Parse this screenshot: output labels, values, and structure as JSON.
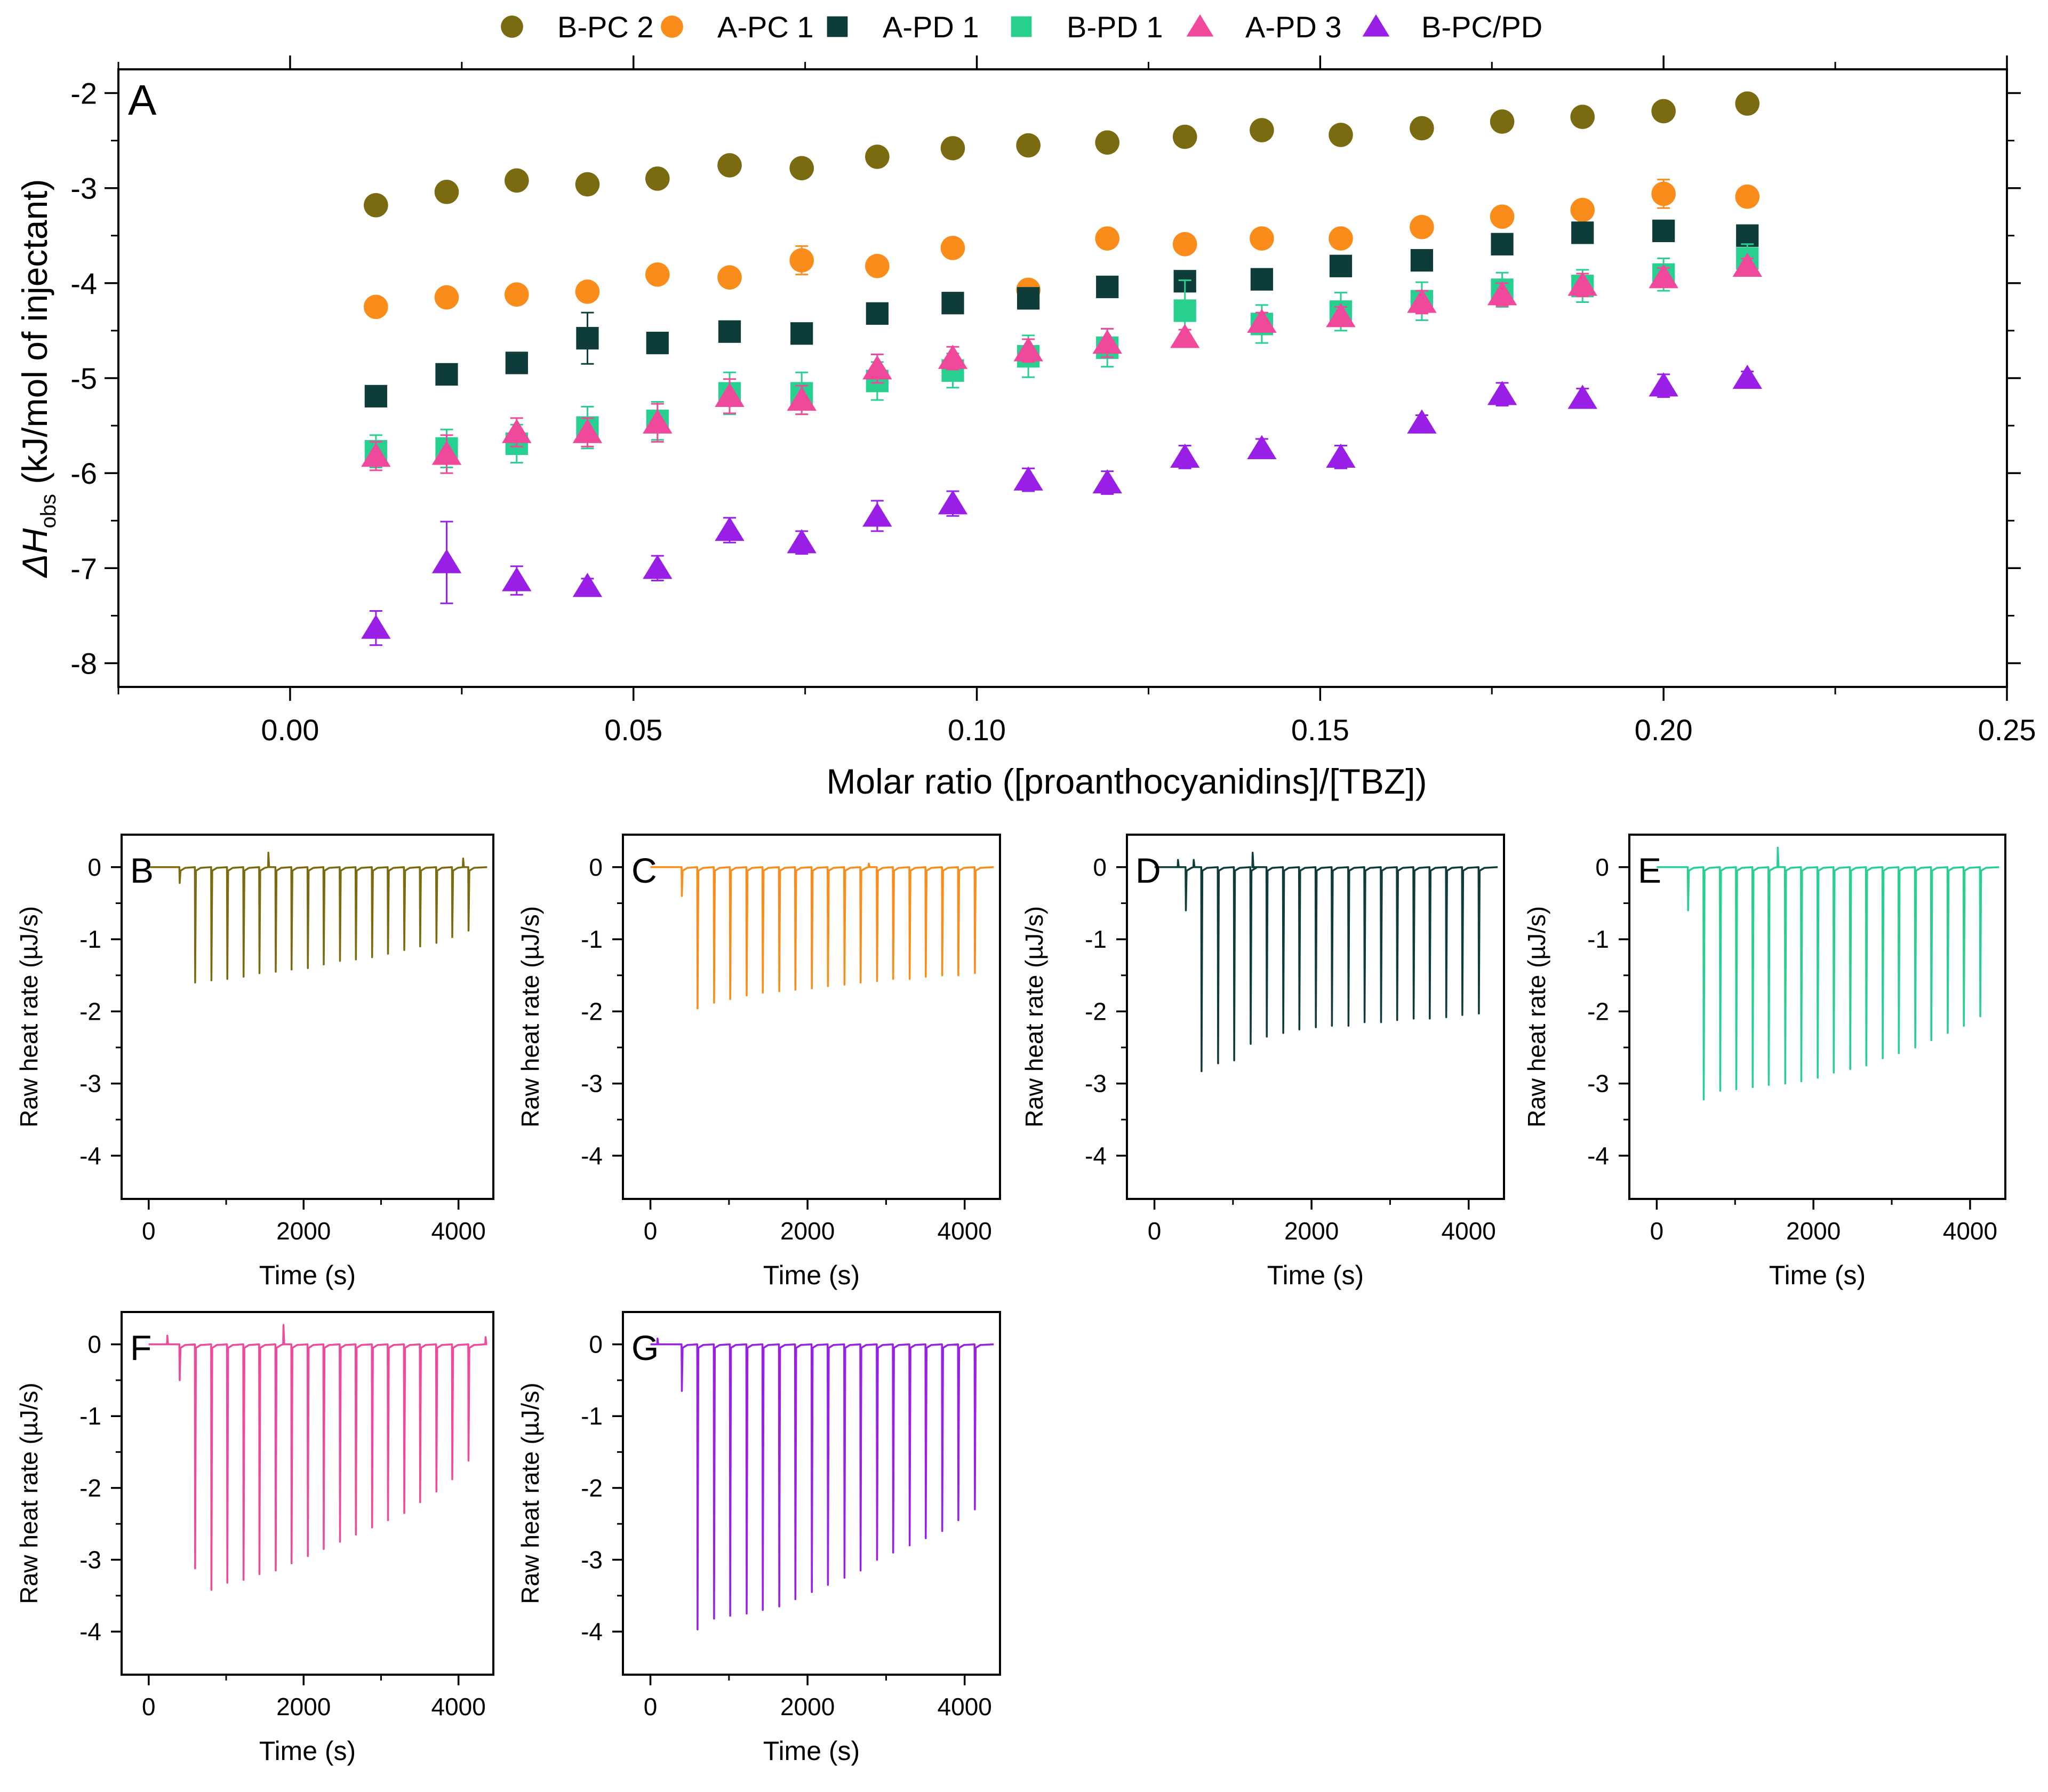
{
  "chart_data": [
    {
      "type": "scatter",
      "panel_label": "A",
      "title": "",
      "xlabel": "Molar ratio ([proanthocyanidins]/[TBZ])",
      "ylabel": "ΔH",
      "ylabel_sub": "obs",
      "ylabel_unit": "(kJ/mol of injectant)",
      "xlim": [
        -0.025,
        0.25
      ],
      "ylim": [
        -8.25,
        -1.75
      ],
      "x_ticks": [
        "0.00",
        "0.05",
        "0.10",
        "0.15",
        "0.20",
        "0.25"
      ],
      "y_ticks": [
        "-2",
        "-3",
        "-4",
        "-5",
        "-6",
        "-7",
        "-8"
      ],
      "legend_position": "top (outside, single row)",
      "x": [
        0.0125,
        0.0228,
        0.033,
        0.0433,
        0.0535,
        0.064,
        0.0745,
        0.0855,
        0.0965,
        0.1075,
        0.119,
        0.1303,
        0.1415,
        0.153,
        0.1648,
        0.1765,
        0.1882,
        0.2,
        0.2122
      ],
      "series": [
        {
          "name": "B-PC 2",
          "marker": "circle",
          "color": "#7a6a10",
          "values": [
            -3.18,
            -3.04,
            -2.92,
            -2.96,
            -2.9,
            -2.76,
            -2.79,
            -2.67,
            -2.58,
            -2.55,
            -2.52,
            -2.46,
            -2.39,
            -2.44,
            -2.37,
            -2.3,
            -2.25,
            -2.19,
            -2.11
          ],
          "errors": [
            0.03,
            0.03,
            0.03,
            0.03,
            0.03,
            0.03,
            0.03,
            0.03,
            0.03,
            0.03,
            0.04,
            0.04,
            0.04,
            0.04,
            0.05,
            0.1,
            0.04,
            0.05,
            0.04
          ]
        },
        {
          "name": "A-PC 1",
          "marker": "circle",
          "color": "#f98c1a",
          "values": [
            -4.25,
            -4.15,
            -4.12,
            -4.09,
            -3.91,
            -3.94,
            -3.76,
            -3.82,
            -3.63,
            -4.07,
            -3.53,
            -3.59,
            -3.53,
            -3.53,
            -3.41,
            -3.3,
            -3.23,
            -3.06,
            -3.09
          ],
          "errors": [
            0.08,
            0.04,
            0.04,
            0.04,
            0.04,
            0.06,
            0.15,
            0.05,
            0.05,
            0.06,
            0.07,
            0.1,
            0.05,
            0.05,
            0.05,
            0.06,
            0.05,
            0.15,
            0.05
          ]
        },
        {
          "name": "A-PD 1",
          "marker": "square",
          "color": "#0d3c3a",
          "values": [
            -5.19,
            -4.96,
            -4.84,
            -4.58,
            -4.63,
            -4.51,
            -4.53,
            -4.32,
            -4.21,
            -4.16,
            -4.04,
            -3.98,
            -3.96,
            -3.82,
            -3.76,
            -3.59,
            -3.47,
            -3.45,
            -3.5
          ],
          "errors": [
            0.04,
            0.04,
            0.08,
            0.27,
            0.08,
            0.05,
            0.08,
            0.05,
            0.04,
            0.04,
            0.04,
            0.05,
            0.05,
            0.05,
            0.05,
            0.05,
            0.05,
            0.05,
            0.08
          ]
        },
        {
          "name": "B-PD 1",
          "marker": "square",
          "color": "#27d08e",
          "values": [
            -5.77,
            -5.74,
            -5.69,
            -5.52,
            -5.45,
            -5.16,
            -5.16,
            -5.03,
            -4.92,
            -4.77,
            -4.68,
            -4.29,
            -4.43,
            -4.3,
            -4.19,
            -4.07,
            -4.03,
            -3.91,
            -3.74
          ],
          "errors": [
            0.17,
            0.2,
            0.2,
            0.22,
            0.2,
            0.22,
            0.22,
            0.2,
            0.18,
            0.22,
            0.2,
            0.32,
            0.2,
            0.2,
            0.2,
            0.18,
            0.17,
            0.17,
            0.15
          ]
        },
        {
          "name": "A-PD 3",
          "marker": "triangle",
          "color": "#f0489a",
          "values": [
            -5.82,
            -5.8,
            -5.57,
            -5.57,
            -5.47,
            -5.19,
            -5.23,
            -4.9,
            -4.79,
            -4.71,
            -4.63,
            -4.57,
            -4.41,
            -4.35,
            -4.2,
            -4.12,
            -4.02,
            -3.94,
            -3.82
          ],
          "errors": [
            0.15,
            0.2,
            0.15,
            0.15,
            0.2,
            0.18,
            0.15,
            0.15,
            0.12,
            0.12,
            0.15,
            0.08,
            0.1,
            0.1,
            0.12,
            0.12,
            0.12,
            0.1,
            0.08
          ]
        },
        {
          "name": "B-PC/PD",
          "marker": "triangle",
          "color": "#9a1fe6",
          "values": [
            -7.63,
            -6.94,
            -7.13,
            -7.19,
            -7.0,
            -6.6,
            -6.73,
            -6.45,
            -6.32,
            -6.07,
            -6.1,
            -5.83,
            -5.74,
            -5.83,
            -5.47,
            -5.17,
            -5.21,
            -5.08,
            -5.0
          ],
          "errors": [
            0.18,
            0.43,
            0.15,
            0.08,
            0.13,
            0.13,
            0.12,
            0.16,
            0.13,
            0.12,
            0.12,
            0.12,
            0.1,
            0.12,
            0.08,
            0.12,
            0.1,
            0.12,
            0.07
          ]
        }
      ]
    },
    {
      "type": "line",
      "panel_label": "B",
      "color": "#7a6a10",
      "xlabel": "Time (s)",
      "ylabel": "Raw heat rate (µJ/s)",
      "xlim": [
        -350,
        4450
      ],
      "ylim": [
        -4.6,
        0.45
      ],
      "x_ticks": [
        "0",
        "2000",
        "4000"
      ],
      "y_ticks": [
        "0",
        "-1",
        "-2",
        "-3",
        "-4"
      ],
      "start_time": 0,
      "end_time": 4370,
      "baseline": 0,
      "injection_times": [
        400,
        600,
        810,
        1015,
        1225,
        1430,
        1640,
        1845,
        2055,
        2260,
        2470,
        2675,
        2885,
        3090,
        3300,
        3505,
        3715,
        3920,
        4130
      ],
      "peak_values": [
        -0.22,
        -1.6,
        -1.57,
        -1.55,
        -1.52,
        -1.47,
        -1.45,
        -1.42,
        -1.4,
        -1.35,
        -1.3,
        -1.28,
        -1.25,
        -1.2,
        -1.15,
        -1.1,
        -1.05,
        -0.97,
        -0.88
      ],
      "spikes": [
        {
          "t": 1545,
          "v": 0.2
        },
        {
          "t": 4060,
          "v": 0.12
        }
      ]
    },
    {
      "type": "line",
      "panel_label": "C",
      "color": "#f98c1a",
      "xlabel": "Time (s)",
      "ylabel": "Raw heat rate (µJ/s)",
      "xlim": [
        -350,
        4450
      ],
      "ylim": [
        -4.6,
        0.45
      ],
      "x_ticks": [
        "0",
        "2000",
        "4000"
      ],
      "y_ticks": [
        "0",
        "-1",
        "-2",
        "-3",
        "-4"
      ],
      "start_time": 0,
      "end_time": 4370,
      "baseline": 0,
      "injection_times": [
        400,
        600,
        810,
        1015,
        1225,
        1430,
        1640,
        1845,
        2055,
        2260,
        2470,
        2675,
        2885,
        3090,
        3300,
        3505,
        3715,
        3920,
        4130
      ],
      "peak_values": [
        -0.4,
        -1.96,
        -1.88,
        -1.83,
        -1.78,
        -1.74,
        -1.72,
        -1.7,
        -1.68,
        -1.65,
        -1.63,
        -1.6,
        -1.58,
        -1.55,
        -1.55,
        -1.52,
        -1.5,
        -1.5,
        -1.47
      ],
      "spikes": [
        {
          "t": 2780,
          "v": 0.05
        }
      ]
    },
    {
      "type": "line",
      "panel_label": "D",
      "color": "#0d3c3a",
      "xlabel": "Time (s)",
      "ylabel": "Raw heat rate (µJ/s)",
      "xlim": [
        -350,
        4450
      ],
      "ylim": [
        -4.6,
        0.45
      ],
      "x_ticks": [
        "0",
        "2000",
        "4000"
      ],
      "y_ticks": [
        "0",
        "-1",
        "-2",
        "-3",
        "-4"
      ],
      "start_time": 0,
      "end_time": 4370,
      "baseline": 0,
      "injection_times": [
        400,
        600,
        810,
        1015,
        1225,
        1430,
        1640,
        1845,
        2055,
        2260,
        2470,
        2675,
        2885,
        3090,
        3300,
        3505,
        3715,
        3920,
        4130
      ],
      "peak_values": [
        -0.6,
        -2.83,
        -2.72,
        -2.68,
        -2.45,
        -2.35,
        -2.3,
        -2.25,
        -2.22,
        -2.2,
        -2.2,
        -2.15,
        -2.15,
        -2.12,
        -2.1,
        -2.1,
        -2.08,
        -2.05,
        -2.03
      ],
      "spikes": [
        {
          "t": 1250,
          "v": 0.2
        },
        {
          "t": 500,
          "v": 0.1
        },
        {
          "t": 300,
          "v": 0.1
        }
      ]
    },
    {
      "type": "line",
      "panel_label": "E",
      "color": "#27d08e",
      "xlabel": "Time (s)",
      "ylabel": "Raw heat rate (µJ/s)",
      "xlim": [
        -350,
        4450
      ],
      "ylim": [
        -4.6,
        0.45
      ],
      "x_ticks": [
        "0",
        "2000",
        "4000"
      ],
      "y_ticks": [
        "0",
        "-1",
        "-2",
        "-3",
        "-4"
      ],
      "start_time": 0,
      "end_time": 4370,
      "baseline": 0,
      "injection_times": [
        400,
        600,
        810,
        1015,
        1225,
        1430,
        1640,
        1845,
        2055,
        2260,
        2470,
        2675,
        2885,
        3090,
        3300,
        3505,
        3715,
        3920,
        4130
      ],
      "peak_values": [
        -0.6,
        -3.22,
        -3.1,
        -3.08,
        -3.05,
        -3.02,
        -3.0,
        -2.97,
        -2.92,
        -2.85,
        -2.8,
        -2.75,
        -2.65,
        -2.58,
        -2.5,
        -2.4,
        -2.3,
        -2.2,
        -2.07
      ],
      "spikes": [
        {
          "t": 1545,
          "v": 0.27
        }
      ]
    },
    {
      "type": "line",
      "panel_label": "F",
      "color": "#f0489a",
      "xlabel": "Time (s)",
      "ylabel": "Raw heat rate (µJ/s)",
      "xlim": [
        -350,
        4450
      ],
      "ylim": [
        -4.6,
        0.45
      ],
      "x_ticks": [
        "0",
        "2000",
        "4000"
      ],
      "y_ticks": [
        "0",
        "-1",
        "-2",
        "-3",
        "-4"
      ],
      "start_time": 0,
      "end_time": 4370,
      "baseline": 0,
      "injection_times": [
        400,
        600,
        810,
        1015,
        1225,
        1430,
        1640,
        1845,
        2055,
        2260,
        2470,
        2675,
        2885,
        3090,
        3300,
        3505,
        3715,
        3920,
        4130
      ],
      "peak_values": [
        -0.5,
        -3.12,
        -3.42,
        -3.32,
        -3.28,
        -3.2,
        -3.15,
        -3.05,
        -2.95,
        -2.85,
        -2.75,
        -2.65,
        -2.55,
        -2.45,
        -2.35,
        -2.2,
        -2.05,
        -1.88,
        -1.62
      ],
      "spikes": [
        {
          "t": 1740,
          "v": 0.27
        },
        {
          "t": 240,
          "v": 0.12
        },
        {
          "t": 4350,
          "v": 0.1
        }
      ]
    },
    {
      "type": "line",
      "panel_label": "G",
      "color": "#9a1fe6",
      "xlabel": "Time (s)",
      "ylabel": "Raw heat rate (µJ/s)",
      "xlim": [
        -350,
        4450
      ],
      "ylim": [
        -4.6,
        0.45
      ],
      "x_ticks": [
        "0",
        "2000",
        "4000"
      ],
      "y_ticks": [
        "0",
        "-1",
        "-2",
        "-3",
        "-4"
      ],
      "start_time": 0,
      "end_time": 4370,
      "baseline": 0,
      "injection_times": [
        400,
        600,
        810,
        1015,
        1225,
        1430,
        1640,
        1845,
        2055,
        2260,
        2470,
        2675,
        2885,
        3090,
        3300,
        3505,
        3715,
        3920,
        4130
      ],
      "peak_values": [
        -0.65,
        -3.97,
        -3.82,
        -3.78,
        -3.75,
        -3.7,
        -3.65,
        -3.55,
        -3.45,
        -3.35,
        -3.25,
        -3.15,
        -3.0,
        -2.9,
        -2.8,
        -2.7,
        -2.6,
        -2.45,
        -2.3
      ],
      "spikes": [
        {
          "t": 90,
          "v": 0.08
        }
      ]
    }
  ]
}
